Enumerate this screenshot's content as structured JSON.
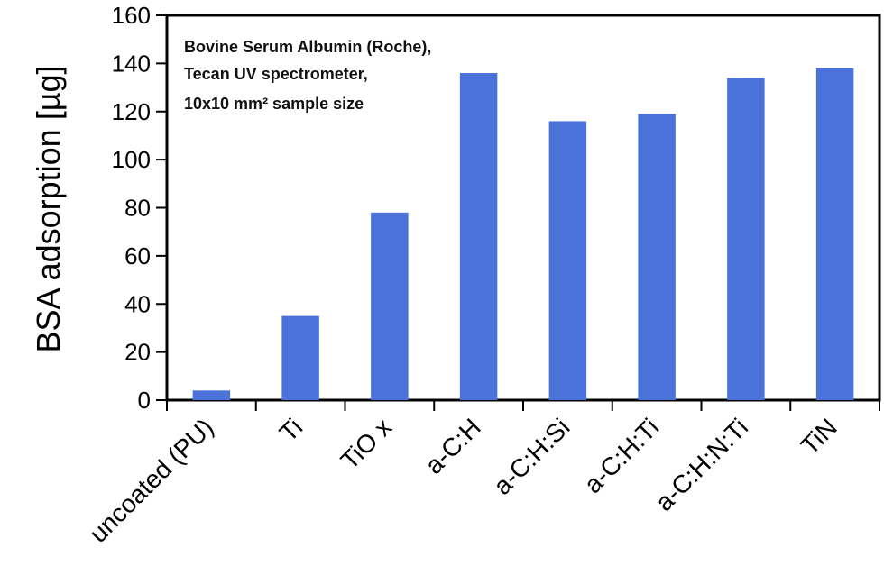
{
  "chart_data": {
    "type": "bar",
    "categories": [
      "uncoated (PU)",
      "Ti",
      "TiO x",
      "a-C:H",
      "a-C:H:Si",
      "a-C:H:Ti",
      "a-C:H:N:Ti",
      "TiN"
    ],
    "values": [
      4,
      35,
      78,
      136,
      116,
      119,
      134,
      138
    ],
    "title": "",
    "xlabel": "",
    "ylabel": "BSA adsorption [µg]",
    "ylim": [
      0,
      160
    ],
    "yticks": [
      0,
      20,
      40,
      60,
      80,
      100,
      120,
      140,
      160
    ],
    "annotations": [
      "Bovine Serum Albumin (Roche),",
      "Tecan UV spectrometer,",
      "10x10 mm² sample size"
    ],
    "grid": false,
    "bar_color": "#4a72d8"
  }
}
